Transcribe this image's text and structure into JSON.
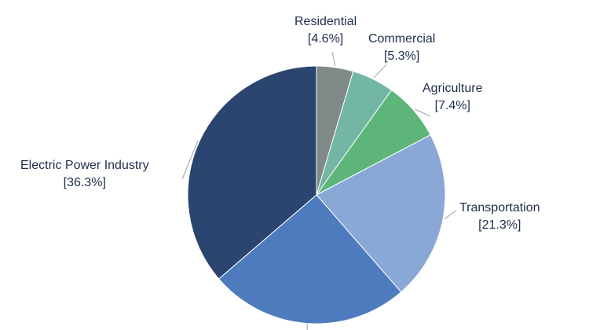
{
  "chart_data": {
    "type": "pie",
    "title": "",
    "slices": [
      {
        "label": "Residential",
        "value_text": "[4.6%]",
        "value": 4.6,
        "color": "#7f8a89"
      },
      {
        "label": "Commercial",
        "value_text": "[5.3%]",
        "value": 5.3,
        "color": "#72b6a3"
      },
      {
        "label": "Agriculture",
        "value_text": "[7.4%]",
        "value": 7.4,
        "color": "#5db57a"
      },
      {
        "label": "Transportation",
        "value_text": "[21.3%]",
        "value": 21.3,
        "color": "#8aa8d6"
      },
      {
        "label": "",
        "value_text": "",
        "value": 25.1,
        "color": "#4e7bbd"
      },
      {
        "label": "Electric Power Industry",
        "value_text": "[36.3%]",
        "value": 36.3,
        "color": "#2b4470"
      }
    ],
    "legend": "none",
    "label_color": "#1f2d4d"
  }
}
